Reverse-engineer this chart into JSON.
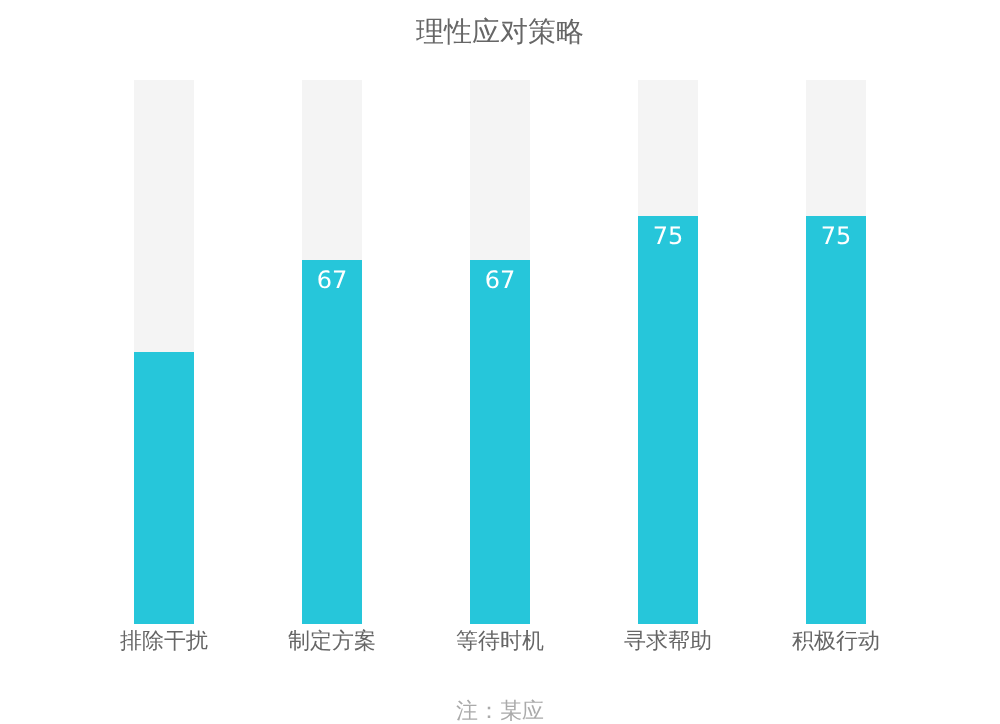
{
  "chart_data": {
    "type": "bar",
    "title": "理性应对策略",
    "categories": [
      "排除干扰",
      "制定方案",
      "等待时机",
      "寻求帮助",
      "积极行动"
    ],
    "series": [
      {
        "color": "#26c6da",
        "values": [
          50,
          67,
          67,
          75,
          75
        ],
        "value_labels": [
          null,
          "67",
          "67",
          "75",
          "75"
        ]
      },
      {
        "color": "#f4f4f4",
        "values": [
          50,
          33,
          33,
          25,
          25
        ]
      }
    ],
    "stacked": true,
    "ylim": [
      0,
      100
    ],
    "tick_labels": "x",
    "annotations": [
      "注：某应"
    ]
  }
}
